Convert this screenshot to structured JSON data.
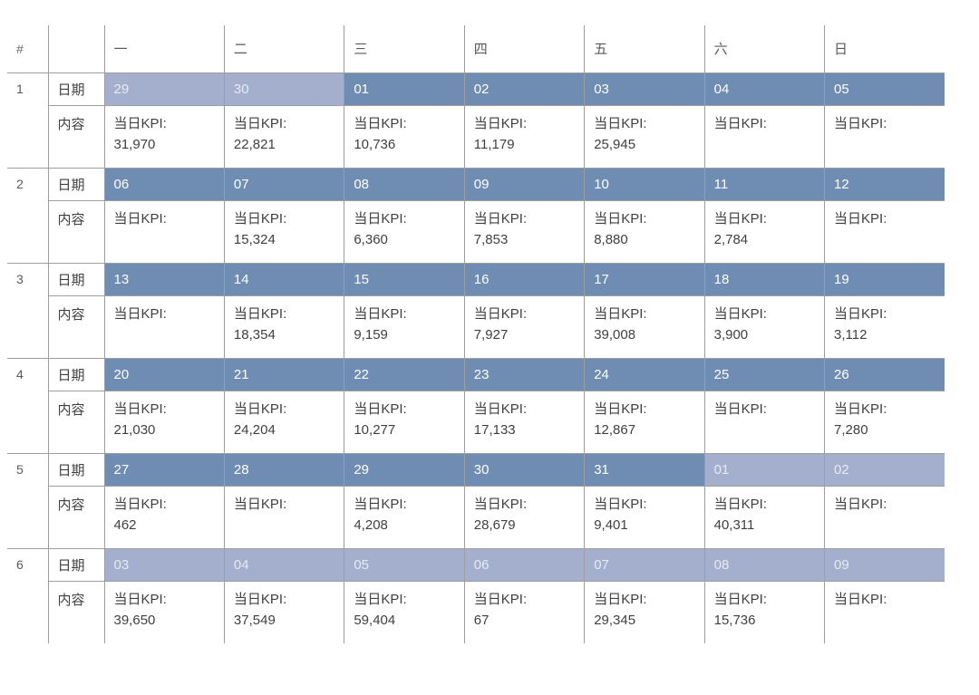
{
  "table": {
    "corner_label": "#",
    "day_headers": [
      "一",
      "二",
      "三",
      "四",
      "五",
      "六",
      "日"
    ],
    "row_label_date": "日期",
    "row_label_content": "内容",
    "kpi_prefix": "当日KPI:",
    "colors": {
      "current_month_bg": "#6F8DB3",
      "adjacent_month_bg": "#A3AFCD",
      "border": "#9E9E9E"
    },
    "weeks": [
      {
        "num": "1",
        "days": [
          {
            "date": "29",
            "other": true,
            "kpi": "31,970"
          },
          {
            "date": "30",
            "other": true,
            "kpi": "22,821"
          },
          {
            "date": "01",
            "other": false,
            "kpi": "10,736"
          },
          {
            "date": "02",
            "other": false,
            "kpi": "11,179"
          },
          {
            "date": "03",
            "other": false,
            "kpi": "25,945"
          },
          {
            "date": "04",
            "other": false,
            "kpi": ""
          },
          {
            "date": "05",
            "other": false,
            "kpi": ""
          }
        ]
      },
      {
        "num": "2",
        "days": [
          {
            "date": "06",
            "other": false,
            "kpi": ""
          },
          {
            "date": "07",
            "other": false,
            "kpi": "15,324"
          },
          {
            "date": "08",
            "other": false,
            "kpi": "6,360"
          },
          {
            "date": "09",
            "other": false,
            "kpi": "7,853"
          },
          {
            "date": "10",
            "other": false,
            "kpi": "8,880"
          },
          {
            "date": "11",
            "other": false,
            "kpi": "2,784"
          },
          {
            "date": "12",
            "other": false,
            "kpi": ""
          }
        ]
      },
      {
        "num": "3",
        "days": [
          {
            "date": "13",
            "other": false,
            "kpi": ""
          },
          {
            "date": "14",
            "other": false,
            "kpi": "18,354"
          },
          {
            "date": "15",
            "other": false,
            "kpi": "9,159"
          },
          {
            "date": "16",
            "other": false,
            "kpi": "7,927"
          },
          {
            "date": "17",
            "other": false,
            "kpi": "39,008"
          },
          {
            "date": "18",
            "other": false,
            "kpi": "3,900"
          },
          {
            "date": "19",
            "other": false,
            "kpi": "3,112"
          }
        ]
      },
      {
        "num": "4",
        "days": [
          {
            "date": "20",
            "other": false,
            "kpi": "21,030"
          },
          {
            "date": "21",
            "other": false,
            "kpi": "24,204"
          },
          {
            "date": "22",
            "other": false,
            "kpi": "10,277"
          },
          {
            "date": "23",
            "other": false,
            "kpi": "17,133"
          },
          {
            "date": "24",
            "other": false,
            "kpi": "12,867"
          },
          {
            "date": "25",
            "other": false,
            "kpi": ""
          },
          {
            "date": "26",
            "other": false,
            "kpi": "7,280"
          }
        ]
      },
      {
        "num": "5",
        "days": [
          {
            "date": "27",
            "other": false,
            "kpi": "462"
          },
          {
            "date": "28",
            "other": false,
            "kpi": ""
          },
          {
            "date": "29",
            "other": false,
            "kpi": "4,208"
          },
          {
            "date": "30",
            "other": false,
            "kpi": "28,679"
          },
          {
            "date": "31",
            "other": false,
            "kpi": "9,401"
          },
          {
            "date": "01",
            "other": true,
            "kpi": "40,311"
          },
          {
            "date": "02",
            "other": true,
            "kpi": ""
          }
        ]
      },
      {
        "num": "6",
        "days": [
          {
            "date": "03",
            "other": true,
            "kpi": "39,650"
          },
          {
            "date": "04",
            "other": true,
            "kpi": "37,549"
          },
          {
            "date": "05",
            "other": true,
            "kpi": "59,404"
          },
          {
            "date": "06",
            "other": true,
            "kpi": "67"
          },
          {
            "date": "07",
            "other": true,
            "kpi": "29,345"
          },
          {
            "date": "08",
            "other": true,
            "kpi": "15,736"
          },
          {
            "date": "09",
            "other": true,
            "kpi": ""
          }
        ]
      }
    ]
  }
}
